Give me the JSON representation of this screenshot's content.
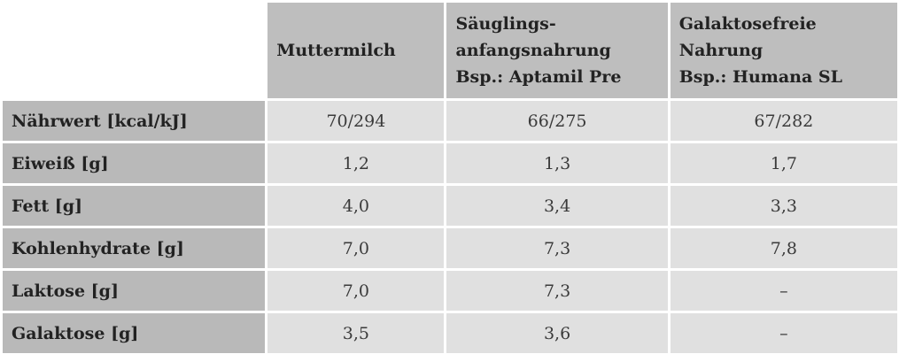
{
  "colors": {
    "header_bg": "#bebebe",
    "label_bg": "#b9b9b9",
    "cell_bg": "#e0e0e0",
    "gap": "#ffffff",
    "label_text": "#222222",
    "value_text": "#3a3a3a"
  },
  "table": {
    "columns": [
      {
        "lines": [
          "",
          "",
          ""
        ]
      },
      {
        "lines": [
          "Muttermilch",
          "",
          ""
        ]
      },
      {
        "lines": [
          "Säuglings-",
          "anfangsnahrung",
          "Bsp.: Aptamil Pre"
        ]
      },
      {
        "lines": [
          "Galaktosefreie",
          "Nahrung",
          "Bsp.: Humana SL"
        ]
      }
    ],
    "rows": [
      {
        "label": "Nährwert [kcal/kJ]",
        "values": [
          "70/294",
          "66/275",
          "67/282"
        ]
      },
      {
        "label": "Eiweiß [g]",
        "values": [
          "1,2",
          "1,3",
          "1,7"
        ]
      },
      {
        "label": "Fett [g]",
        "values": [
          "4,0",
          "3,4",
          "3,3"
        ]
      },
      {
        "label": "Kohlenhydrate [g]",
        "values": [
          "7,0",
          "7,3",
          "7,8"
        ]
      },
      {
        "label": "Laktose [g]",
        "values": [
          "7,0",
          "7,3",
          "–"
        ]
      },
      {
        "label": "Galaktose [g]",
        "values": [
          "3,5",
          "3,6",
          "–"
        ]
      }
    ]
  },
  "chart_data": {
    "type": "table",
    "title": "",
    "columns": [
      "",
      "Muttermilch",
      "Säuglingsanfangsnahrung Bsp.: Aptamil Pre",
      "Galaktosefreie Nahrung Bsp.: Humana SL"
    ],
    "rows": [
      [
        "Nährwert [kcal/kJ]",
        "70/294",
        "66/275",
        "67/282"
      ],
      [
        "Eiweiß [g]",
        "1,2",
        "1,3",
        "1,7"
      ],
      [
        "Fett [g]",
        "4,0",
        "3,4",
        "3,3"
      ],
      [
        "Kohlenhydrate [g]",
        "7,0",
        "7,3",
        "7,8"
      ],
      [
        "Laktose [g]",
        "7,0",
        "7,3",
        "–"
      ],
      [
        "Galaktose [g]",
        "3,5",
        "3,6",
        "–"
      ]
    ]
  }
}
